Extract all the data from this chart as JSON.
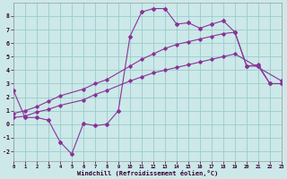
{
  "background_color": "#cce8e8",
  "grid_color": "#99cccc",
  "line_color": "#883399",
  "xlim": [
    0,
    23
  ],
  "ylim": [
    -2.7,
    9.0
  ],
  "yticks": [
    -2,
    -1,
    0,
    1,
    2,
    3,
    4,
    5,
    6,
    7,
    8
  ],
  "xticks": [
    0,
    1,
    2,
    3,
    4,
    5,
    6,
    7,
    8,
    9,
    10,
    11,
    12,
    13,
    14,
    15,
    16,
    17,
    18,
    19,
    20,
    21,
    22,
    23
  ],
  "xlabel": "Windchill (Refroidissement éolien,°C)",
  "main_x": [
    0,
    1,
    2,
    3,
    4,
    5,
    6,
    7,
    8,
    9,
    10,
    11,
    12,
    13,
    14,
    15,
    16,
    17,
    18,
    19,
    20,
    21,
    22,
    23
  ],
  "main_y": [
    2.5,
    0.5,
    0.5,
    0.3,
    -1.3,
    -2.2,
    0.05,
    -0.1,
    0.0,
    1.0,
    6.5,
    8.3,
    8.55,
    8.55,
    7.4,
    7.5,
    7.1,
    7.4,
    7.65,
    6.8,
    4.3,
    4.3,
    3.0,
    3.0
  ],
  "upper_x": [
    0,
    1,
    2,
    3,
    4,
    6,
    7,
    8,
    10,
    11,
    12,
    13,
    14,
    15,
    16,
    17,
    18,
    19,
    20,
    21,
    22,
    23
  ],
  "upper_y": [
    0.8,
    1.0,
    1.3,
    1.7,
    2.1,
    2.6,
    3.0,
    3.3,
    4.3,
    4.8,
    5.2,
    5.6,
    5.9,
    6.1,
    6.3,
    6.5,
    6.7,
    6.8,
    4.3,
    4.4,
    3.0,
    3.0
  ],
  "lower_x": [
    0,
    1,
    2,
    3,
    4,
    6,
    7,
    8,
    10,
    11,
    12,
    13,
    14,
    15,
    16,
    17,
    18,
    19,
    23
  ],
  "lower_y": [
    0.5,
    0.6,
    0.9,
    1.1,
    1.4,
    1.8,
    2.2,
    2.5,
    3.2,
    3.5,
    3.8,
    4.0,
    4.2,
    4.4,
    4.6,
    4.8,
    5.0,
    5.2,
    3.2
  ]
}
